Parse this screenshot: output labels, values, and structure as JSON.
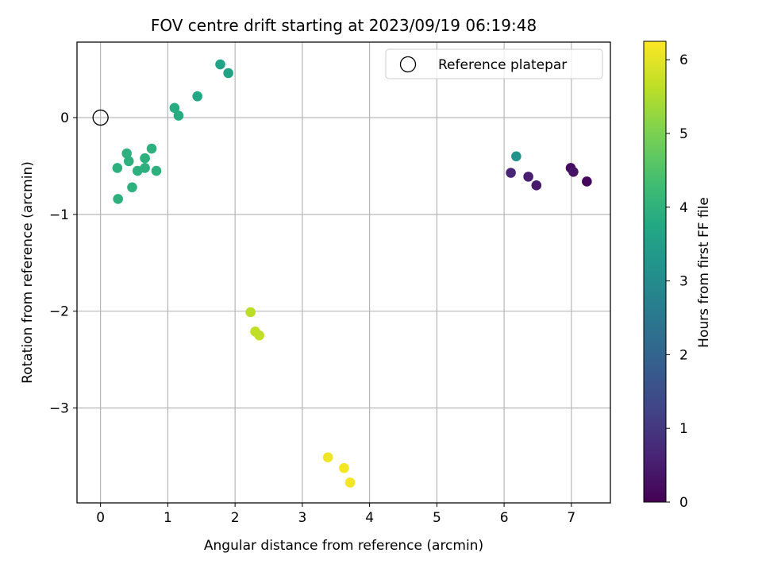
{
  "chart_data": {
    "type": "scatter",
    "title": "FOV centre drift starting at 2023/09/19 06:19:48",
    "xlabel": "Angular distance from reference (arcmin)",
    "ylabel": "Rotation from reference (arcmin)",
    "xlim": [
      -0.35,
      7.58
    ],
    "ylim": [
      -3.98,
      0.78
    ],
    "x_ticks": [
      0,
      1,
      2,
      3,
      4,
      5,
      6,
      7
    ],
    "x_tick_labels": [
      "0",
      "1",
      "2",
      "3",
      "4",
      "5",
      "6",
      "7"
    ],
    "y_ticks": [
      0,
      -1,
      -2,
      -3
    ],
    "y_tick_labels": [
      "0",
      "−1",
      "−2",
      "−3"
    ],
    "grid": true,
    "legend": {
      "placement": "top-right",
      "entries": [
        {
          "label": "Reference platepar",
          "marker": "open-circle",
          "color": "#000000"
        }
      ]
    },
    "reference_point": {
      "x": 0,
      "y": 0
    },
    "colorbar": {
      "label": "Hours from first FF file",
      "colormap": "viridis",
      "range": [
        0,
        6.25
      ],
      "ticks": [
        0,
        1,
        2,
        3,
        4,
        5,
        6
      ],
      "tick_labels": [
        "0",
        "1",
        "2",
        "3",
        "4",
        "5",
        "6"
      ]
    },
    "points": [
      {
        "x": 7.23,
        "y": -0.66,
        "hours": 0.1
      },
      {
        "x": 6.99,
        "y": -0.52,
        "hours": 0.2
      },
      {
        "x": 7.03,
        "y": -0.56,
        "hours": 0.3
      },
      {
        "x": 6.48,
        "y": -0.7,
        "hours": 0.45
      },
      {
        "x": 6.36,
        "y": -0.61,
        "hours": 0.55
      },
      {
        "x": 6.1,
        "y": -0.57,
        "hours": 0.65
      },
      {
        "x": 6.18,
        "y": -0.4,
        "hours": 3.2
      },
      {
        "x": 1.78,
        "y": 0.55,
        "hours": 3.6
      },
      {
        "x": 1.9,
        "y": 0.46,
        "hours": 3.6
      },
      {
        "x": 1.44,
        "y": 0.22,
        "hours": 3.75
      },
      {
        "x": 1.1,
        "y": 0.1,
        "hours": 3.85
      },
      {
        "x": 1.16,
        "y": 0.02,
        "hours": 3.85
      },
      {
        "x": 0.39,
        "y": -0.37,
        "hours": 3.95
      },
      {
        "x": 0.42,
        "y": -0.45,
        "hours": 3.95
      },
      {
        "x": 0.76,
        "y": -0.32,
        "hours": 3.95
      },
      {
        "x": 0.66,
        "y": -0.42,
        "hours": 3.95
      },
      {
        "x": 0.25,
        "y": -0.52,
        "hours": 3.95
      },
      {
        "x": 0.55,
        "y": -0.55,
        "hours": 3.95
      },
      {
        "x": 0.66,
        "y": -0.52,
        "hours": 3.95
      },
      {
        "x": 0.83,
        "y": -0.55,
        "hours": 3.95
      },
      {
        "x": 0.47,
        "y": -0.72,
        "hours": 3.95
      },
      {
        "x": 0.26,
        "y": -0.84,
        "hours": 3.95
      },
      {
        "x": 2.23,
        "y": -2.01,
        "hours": 5.6
      },
      {
        "x": 2.3,
        "y": -2.21,
        "hours": 5.65
      },
      {
        "x": 2.36,
        "y": -2.25,
        "hours": 5.65
      },
      {
        "x": 3.38,
        "y": -3.51,
        "hours": 6.1
      },
      {
        "x": 3.62,
        "y": -3.62,
        "hours": 6.15
      },
      {
        "x": 3.71,
        "y": -3.77,
        "hours": 6.15
      }
    ]
  }
}
